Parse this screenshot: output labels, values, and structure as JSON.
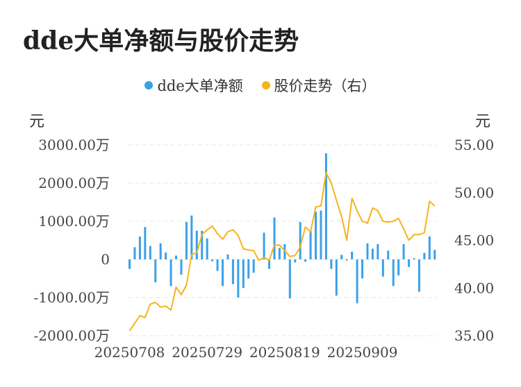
{
  "title": "dde大单净额与股价走势",
  "legend": [
    {
      "label": "dde大单净额",
      "color": "#3aa0e8"
    },
    {
      "label": "股价走势（右）",
      "color": "#f5b41a"
    }
  ],
  "left_unit": "元",
  "right_unit": "元",
  "chart_data": {
    "type": "bar+line",
    "x_ticks": [
      "20250708",
      "20250729",
      "20250819",
      "20250909"
    ],
    "y_left_ticks": [
      "3000.00万",
      "2000.00万",
      "1000.00万",
      "0",
      "-1000.00万",
      "-2000.00万"
    ],
    "y_right_ticks": [
      "55.00",
      "50.00",
      "45.00",
      "40.00",
      "35.00"
    ],
    "y_left_range": [
      -2000,
      3000
    ],
    "y_right_range": [
      35,
      55
    ],
    "series": [
      {
        "name": "dde大单净额",
        "type": "bar",
        "axis": "left",
        "unit": "万",
        "values": [
          -250,
          320,
          600,
          850,
          350,
          -600,
          420,
          180,
          -700,
          100,
          -400,
          980,
          1150,
          750,
          750,
          550,
          -50,
          -300,
          -700,
          130,
          -650,
          -1000,
          -750,
          -500,
          -350,
          0,
          700,
          -250,
          1100,
          300,
          400,
          -1020,
          -80,
          980,
          -60,
          750,
          1250,
          1280,
          2780,
          -250,
          -950,
          120,
          -30,
          200,
          -1150,
          -500,
          420,
          280,
          400,
          -450,
          230,
          -700,
          -420,
          400,
          -200,
          30,
          -850,
          170,
          600,
          250
        ]
      },
      {
        "name": "股价走势（右）",
        "type": "line",
        "axis": "right",
        "values": [
          35.5,
          36.3,
          37.1,
          36.9,
          38.3,
          38.5,
          38.0,
          38.1,
          37.7,
          40.1,
          39.3,
          40.3,
          43.5,
          43.7,
          45.6,
          46.1,
          46.5,
          45.7,
          45.1,
          45.9,
          46.1,
          45.5,
          44.1,
          44.0,
          43.9,
          42.9,
          43.2,
          42.9,
          44.5,
          44.5,
          43.9,
          43.3,
          43.4,
          44.3,
          46.4,
          45.9,
          48.5,
          48.6,
          52.1,
          51.0,
          49.2,
          47.5,
          45.0,
          49.4,
          48.1,
          47.0,
          46.8,
          48.4,
          48.1,
          47.0,
          46.9,
          47.0,
          47.3,
          46.2,
          45.0,
          45.6,
          45.6,
          45.8,
          49.1,
          48.6
        ]
      }
    ],
    "grid": true
  }
}
